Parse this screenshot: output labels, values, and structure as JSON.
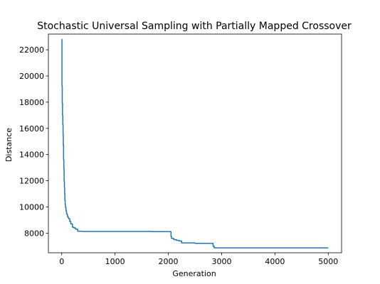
{
  "chart_data": {
    "type": "line",
    "title": "Stochastic Universal Sampling with Partially Mapped Crossover",
    "xlabel": "Generation",
    "ylabel": "Distance",
    "xlim": [
      -250,
      5250
    ],
    "ylim": [
      6500,
      23200
    ],
    "xticks": [
      0,
      1000,
      2000,
      3000,
      4000,
      5000
    ],
    "yticks": [
      8000,
      10000,
      12000,
      14000,
      16000,
      18000,
      20000,
      22000
    ],
    "grid": false,
    "legend": "none",
    "series": [
      {
        "color": "#1f77b4",
        "x": [
          0,
          5,
          10,
          15,
          20,
          25,
          30,
          35,
          40,
          45,
          50,
          55,
          60,
          65,
          70,
          80,
          90,
          100,
          110,
          120,
          130,
          150,
          170,
          200,
          230,
          260,
          300,
          340,
          400,
          600,
          1000,
          1400,
          1680,
          1700,
          2000,
          2050,
          2060,
          2100,
          2150,
          2200,
          2250,
          2500,
          2800,
          2840,
          2860,
          2900,
          3500,
          4000,
          5000
        ],
        "y": [
          22800,
          19200,
          17900,
          17000,
          16300,
          15500,
          14700,
          13600,
          12900,
          12000,
          11500,
          11000,
          10500,
          10200,
          9950,
          9700,
          9500,
          9400,
          9250,
          9200,
          9100,
          8900,
          8700,
          8450,
          8400,
          8300,
          8150,
          8140,
          8130,
          8130,
          8130,
          8130,
          8130,
          8110,
          8110,
          7750,
          7600,
          7500,
          7450,
          7400,
          7250,
          7220,
          7220,
          7000,
          6880,
          6870,
          6870,
          6870,
          6870
        ]
      }
    ]
  }
}
